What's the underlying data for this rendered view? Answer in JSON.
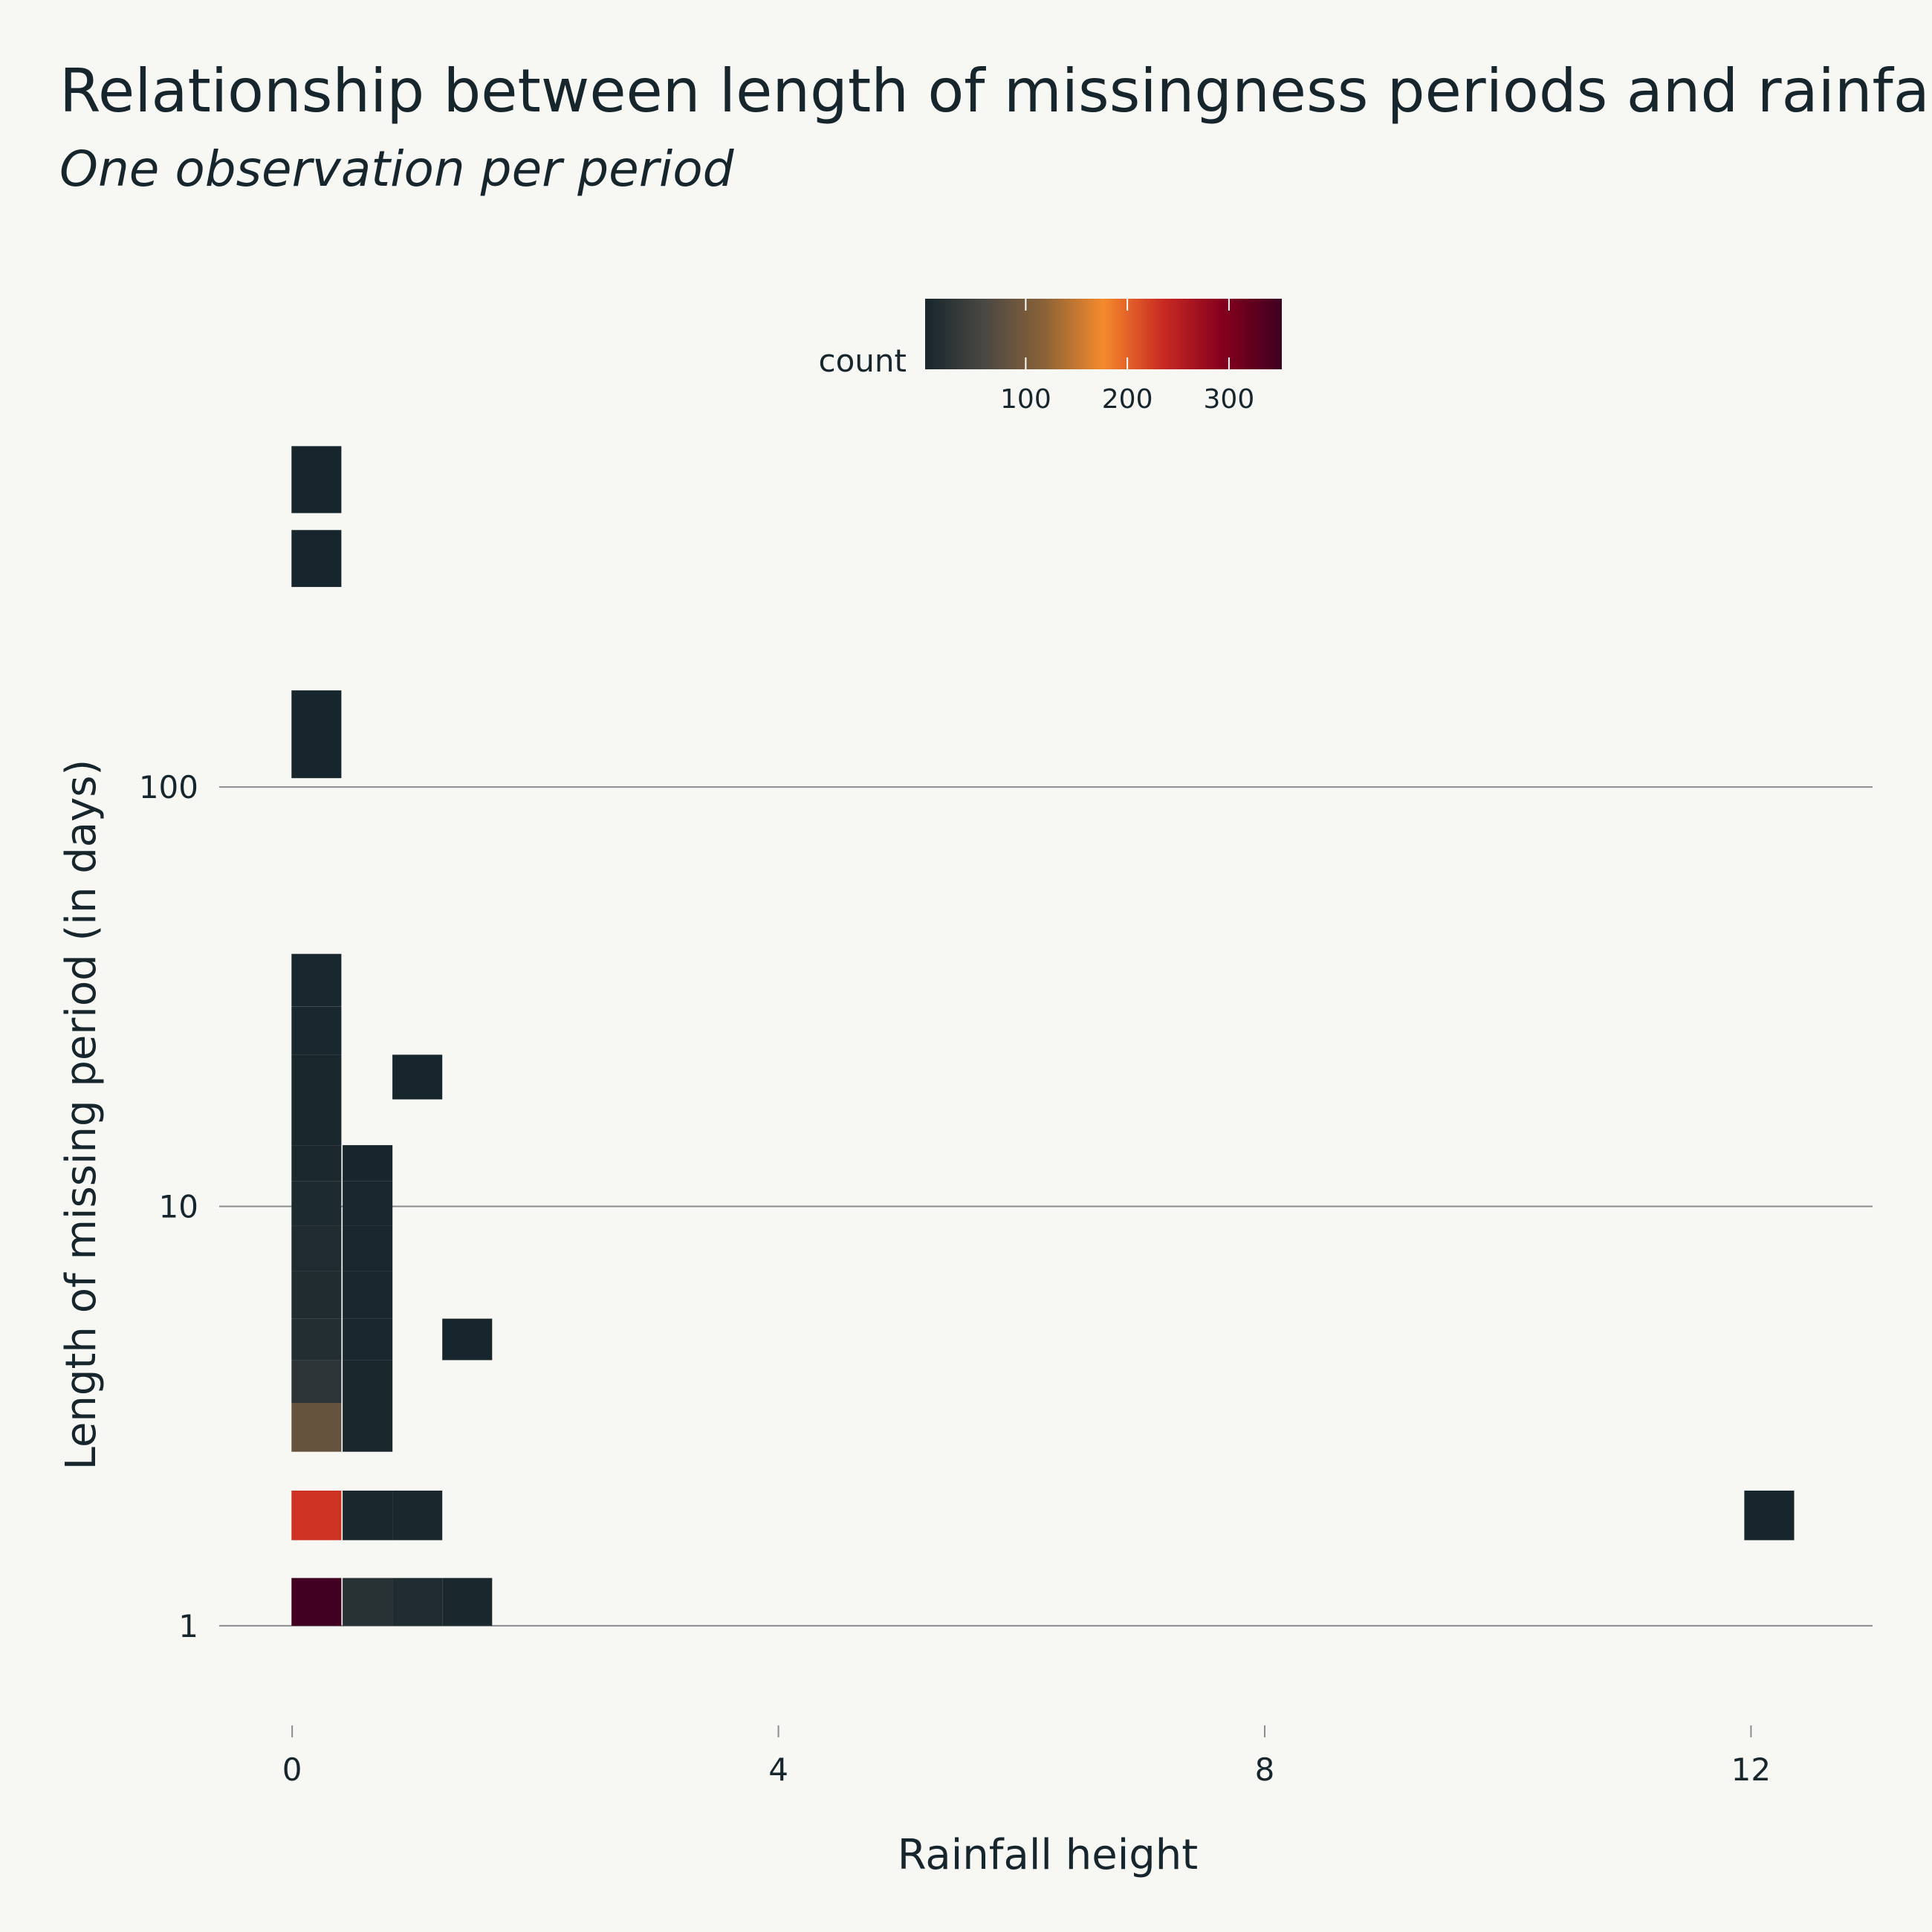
{
  "chart_data": {
    "type": "heatmap",
    "title": "Relationship between length of missingness periods and rainfall",
    "subtitle": "One observation per period",
    "xlabel": "Rainfall height",
    "ylabel": "Length of missing period (in days)",
    "x_scale": "linear",
    "y_scale": "log",
    "x_ticks": [
      0,
      4,
      8,
      12
    ],
    "y_ticks": [
      1,
      10,
      100
    ],
    "xlim": [
      -0.6,
      13
    ],
    "ylim": [
      0.56,
      600
    ],
    "bin_width": 0.41,
    "legend": {
      "title": "count",
      "position": "top",
      "ticks": [
        100,
        200,
        300
      ],
      "range": [
        1,
        352
      ],
      "colors": [
        "#17262d",
        "#4a4842",
        "#8a6237",
        "#f48a2c",
        "#c92a22",
        "#85001d",
        "#3f0021"
      ]
    },
    "bins": [
      {
        "x": 0.2,
        "y": [
          1.0,
          1.3
        ],
        "count": 350
      },
      {
        "x": 0.62,
        "y": [
          1.0,
          1.3
        ],
        "count": 20
      },
      {
        "x": 1.03,
        "y": [
          1.0,
          1.3
        ],
        "count": 10
      },
      {
        "x": 1.44,
        "y": [
          1.0,
          1.3
        ],
        "count": 5
      },
      {
        "x": 0.2,
        "y": [
          1.6,
          2.1
        ],
        "count": 230
      },
      {
        "x": 0.62,
        "y": [
          1.6,
          2.1
        ],
        "count": 5
      },
      {
        "x": 1.03,
        "y": [
          1.6,
          2.1
        ],
        "count": 5
      },
      {
        "x": 12.15,
        "y": [
          1.6,
          2.1
        ],
        "count": 1
      },
      {
        "x": 0.2,
        "y": [
          2.6,
          3.4
        ],
        "count": 85
      },
      {
        "x": 0.62,
        "y": [
          2.6,
          3.4
        ],
        "count": 4
      },
      {
        "x": 0.2,
        "y": [
          3.4,
          4.3
        ],
        "count": 25
      },
      {
        "x": 0.62,
        "y": [
          3.4,
          4.3
        ],
        "count": 4
      },
      {
        "x": 0.2,
        "y": [
          4.3,
          5.4
        ],
        "count": 15
      },
      {
        "x": 0.62,
        "y": [
          4.3,
          5.4
        ],
        "count": 3
      },
      {
        "x": 1.44,
        "y": [
          4.3,
          5.4
        ],
        "count": 1
      },
      {
        "x": 0.2,
        "y": [
          5.4,
          7.0
        ],
        "count": 12
      },
      {
        "x": 0.62,
        "y": [
          5.4,
          7.0
        ],
        "count": 3
      },
      {
        "x": 0.2,
        "y": [
          7.0,
          9.0
        ],
        "count": 10
      },
      {
        "x": 0.62,
        "y": [
          7.0,
          9.0
        ],
        "count": 2
      },
      {
        "x": 0.2,
        "y": [
          9.0,
          11.5
        ],
        "count": 8
      },
      {
        "x": 0.62,
        "y": [
          9.0,
          11.5
        ],
        "count": 2
      },
      {
        "x": 0.2,
        "y": [
          11.5,
          14.0
        ],
        "count": 6
      },
      {
        "x": 0.62,
        "y": [
          11.5,
          14.0
        ],
        "count": 1
      },
      {
        "x": 0.2,
        "y": [
          14.0,
          18.0
        ],
        "count": 5
      },
      {
        "x": 0.2,
        "y": [
          18.0,
          23.0
        ],
        "count": 4
      },
      {
        "x": 1.03,
        "y": [
          18.0,
          23.0
        ],
        "count": 1
      },
      {
        "x": 0.2,
        "y": [
          23.0,
          30.0
        ],
        "count": 3
      },
      {
        "x": 0.2,
        "y": [
          30.0,
          40.0
        ],
        "count": 2
      },
      {
        "x": 0.2,
        "y": [
          105,
          170
        ],
        "count": 1
      },
      {
        "x": 0.2,
        "y": [
          300,
          410
        ],
        "count": 1
      },
      {
        "x": 0.2,
        "y": [
          450,
          650
        ],
        "count": 1
      }
    ]
  }
}
